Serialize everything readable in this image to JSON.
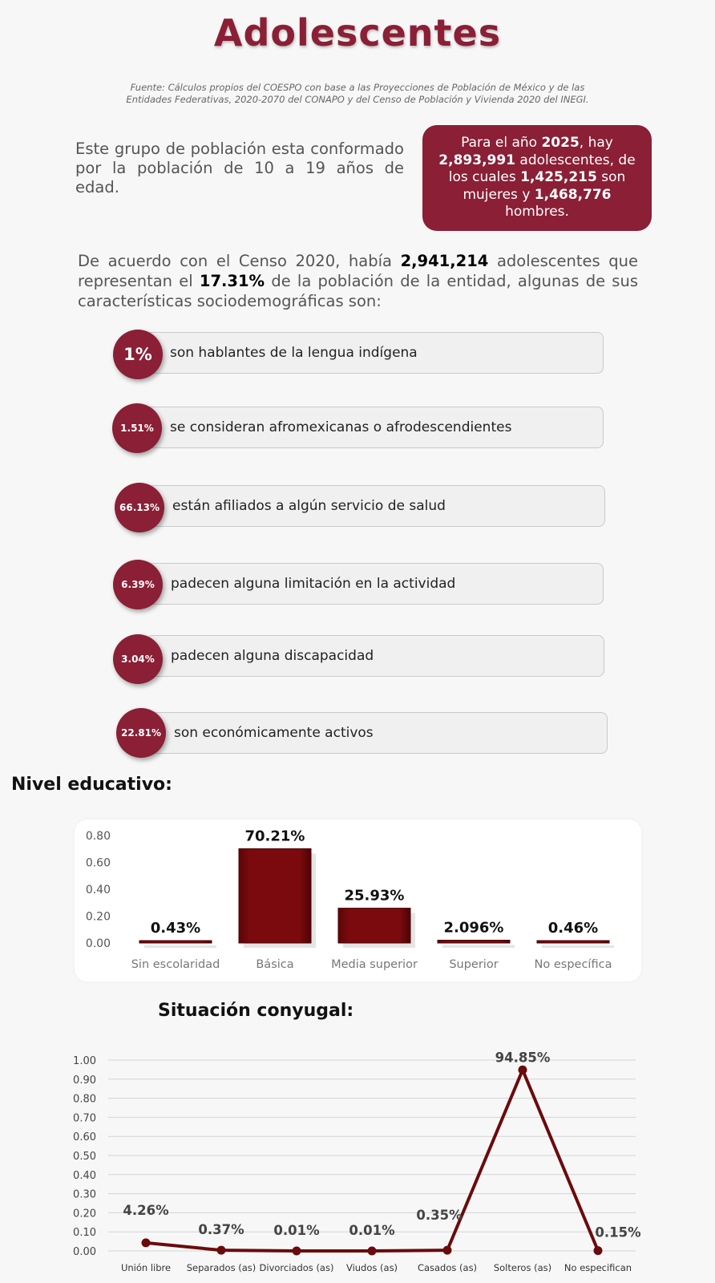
{
  "title": "Adolescentes",
  "source_line1": "Fuente: Cálculos propios del COESPO con base a las Proyecciones de Población de México y de las",
  "source_line2": "Entidades Federativas, 2020-2070 del CONAPO y del Censo de Población y Vivienda 2020 del INEGI.",
  "intro": "Este grupo de población esta conformado por la población de 10 a 19 años de edad.",
  "projection": {
    "t1": "Para el año ",
    "year": "2025",
    "t2": ", hay ",
    "total": "2,893,991",
    "t3": " adolescentes, de los cuales ",
    "women": "1,425,215",
    "t4": " son mujeres y ",
    "men": "1,468,776",
    "t5": " hombres."
  },
  "census": {
    "t1": "De acuerdo con el Censo 2020, había ",
    "total": "2,941,214",
    "t2": " adolescentes que representan el ",
    "pct": "17.31%",
    "t3": " de la población de la entidad, algunas de sus características sociodemográficas son:"
  },
  "stats": [
    {
      "pct": "1%",
      "label": "son hablantes de la lengua indígena"
    },
    {
      "pct": "1.51%",
      "label": "se consideran afromexicanas o afrodescendientes"
    },
    {
      "pct": "66.13%",
      "label": "están afiliados a algún servicio de salud"
    },
    {
      "pct": "6.39%",
      "label": "padecen alguna limitación en la actividad"
    },
    {
      "pct": "3.04%",
      "label": "padecen alguna discapacidad"
    },
    {
      "pct": "22.81%",
      "label": "son económicamente activos"
    }
  ],
  "education_title": "Nivel educativo:",
  "civil_title": "Situación conyugal:",
  "colors": {
    "brand": "#8a1f36",
    "bar": "#7a0a0e",
    "line": "#6b0a0c"
  },
  "chart_data": [
    {
      "type": "bar",
      "categories": [
        "Sin escolaridad",
        "Básica",
        "Media superior",
        "Superior",
        "No específica"
      ],
      "values": [
        0.0043,
        0.7021,
        0.2593,
        0.02096,
        0.0046
      ],
      "data_labels": [
        "0.43%",
        "70.21%",
        "25.93%",
        "2.096%",
        "0.46%"
      ],
      "yticks": [
        "0.00",
        "0.20",
        "0.40",
        "0.60",
        "0.80"
      ],
      "ylim": [
        0,
        0.8
      ],
      "grid": false
    },
    {
      "type": "line",
      "categories": [
        "Unión libre",
        "Separados (as)",
        "Divorciados (as)",
        "Viudos (as)",
        "Casados (as)",
        "Solteros (as)",
        "No especifican"
      ],
      "values": [
        0.0426,
        0.0037,
        0.0001,
        0.0001,
        0.0035,
        0.9485,
        0.0015
      ],
      "data_labels": [
        "4.26%",
        "0.37%",
        "0.01%",
        "0.01%",
        "0.35%",
        "94.85%",
        "0.15%"
      ],
      "yticks": [
        "0.00",
        "0.10",
        "0.20",
        "0.30",
        "0.40",
        "0.50",
        "0.60",
        "0.70",
        "0.80",
        "0.90",
        "1.00"
      ],
      "ylim": [
        0,
        1
      ],
      "grid": true
    }
  ]
}
